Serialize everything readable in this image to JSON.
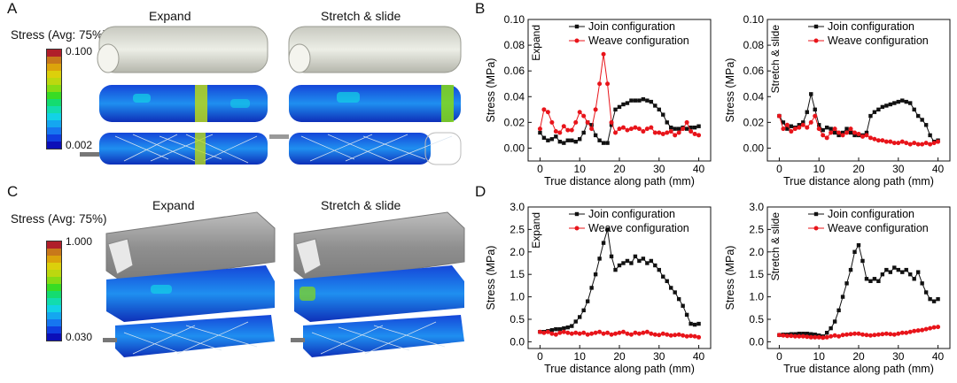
{
  "panels": {
    "A": {
      "letter": "A",
      "legend_title": "Stress (Avg: 75%)",
      "colorbar_max": "0.100",
      "colorbar_min": "0.002",
      "titles": [
        "Expand",
        "Stretch & slide"
      ]
    },
    "C": {
      "letter": "C",
      "legend_title": "Stress (Avg: 75%)",
      "colorbar_max": "1.000",
      "colorbar_min": "0.030",
      "titles": [
        "Expand",
        "Stretch & slide"
      ]
    },
    "B": {
      "letter": "B"
    },
    "D": {
      "letter": "D"
    }
  },
  "colors": {
    "colorbar": [
      "#0b0fb8",
      "#0f3ee0",
      "#1676f0",
      "#14a7f0",
      "#12d2e6",
      "#12dcae",
      "#14dc70",
      "#38dc24",
      "#86dc14",
      "#bcd80f",
      "#dcd00b",
      "#dca40b",
      "#c8781a",
      "#b01e2a"
    ],
    "join": "#111111",
    "weave": "#e8141a"
  },
  "chart_data": [
    {
      "id": "B-expand",
      "type": "line",
      "side_label": "Expand",
      "xlabel": "True distance along path (mm)",
      "ylabel": "Stress (MPa)",
      "xlim": [
        -3,
        43
      ],
      "ylim": [
        -0.01,
        0.1
      ],
      "xticks": [
        0,
        10,
        20,
        30,
        40
      ],
      "yticks": [
        0.0,
        0.02,
        0.04,
        0.06,
        0.08,
        0.1
      ],
      "ytick_labels": [
        "0.00",
        "0.02",
        "0.04",
        "0.06",
        "0.08",
        "0.10"
      ],
      "legend": "top-right",
      "series": [
        {
          "name": "Join configuration",
          "color": "#111111",
          "marker": "square",
          "x": [
            0,
            1,
            2,
            3,
            4,
            5,
            6,
            7,
            8,
            9,
            10,
            11,
            12,
            13,
            14,
            15,
            16,
            17,
            18,
            19,
            20,
            21,
            22,
            23,
            24,
            25,
            26,
            27,
            28,
            29,
            30,
            31,
            32,
            33,
            34,
            35,
            36,
            37,
            38,
            39,
            40
          ],
          "y": [
            0.012,
            0.008,
            0.006,
            0.007,
            0.009,
            0.005,
            0.004,
            0.006,
            0.006,
            0.005,
            0.007,
            0.012,
            0.02,
            0.018,
            0.01,
            0.006,
            0.004,
            0.004,
            0.018,
            0.03,
            0.032,
            0.034,
            0.035,
            0.037,
            0.037,
            0.037,
            0.038,
            0.037,
            0.036,
            0.033,
            0.03,
            0.026,
            0.02,
            0.016,
            0.015,
            0.015,
            0.016,
            0.015,
            0.016,
            0.016,
            0.017
          ]
        },
        {
          "name": "Weave configuration",
          "color": "#e8141a",
          "marker": "circle",
          "x": [
            0,
            1,
            2,
            3,
            4,
            5,
            6,
            7,
            8,
            9,
            10,
            11,
            12,
            13,
            14,
            15,
            16,
            17,
            18,
            19,
            20,
            21,
            22,
            23,
            24,
            25,
            26,
            27,
            28,
            29,
            30,
            31,
            32,
            33,
            34,
            35,
            36,
            37,
            38,
            39,
            40
          ],
          "y": [
            0.015,
            0.03,
            0.028,
            0.02,
            0.013,
            0.012,
            0.017,
            0.014,
            0.014,
            0.02,
            0.028,
            0.025,
            0.02,
            0.015,
            0.03,
            0.05,
            0.073,
            0.05,
            0.02,
            0.012,
            0.015,
            0.016,
            0.014,
            0.015,
            0.016,
            0.015,
            0.013,
            0.015,
            0.016,
            0.012,
            0.012,
            0.011,
            0.012,
            0.013,
            0.01,
            0.012,
            0.015,
            0.02,
            0.013,
            0.011,
            0.01
          ]
        }
      ]
    },
    {
      "id": "B-stretch",
      "type": "line",
      "side_label": "Stretch & slide",
      "xlabel": "True distance along path (mm)",
      "ylabel": "Stress (MPa)",
      "xlim": [
        -3,
        43
      ],
      "ylim": [
        -0.01,
        0.1
      ],
      "xticks": [
        0,
        10,
        20,
        30,
        40
      ],
      "yticks": [
        0.0,
        0.02,
        0.04,
        0.06,
        0.08,
        0.1
      ],
      "ytick_labels": [
        "0.00",
        "0.02",
        "0.04",
        "0.06",
        "0.08",
        "0.10"
      ],
      "legend": "top-right",
      "series": [
        {
          "name": "Join configuration",
          "color": "#111111",
          "marker": "square",
          "x": [
            0,
            1,
            2,
            3,
            4,
            5,
            6,
            7,
            8,
            9,
            10,
            11,
            12,
            13,
            14,
            15,
            16,
            17,
            18,
            19,
            20,
            21,
            22,
            23,
            24,
            25,
            26,
            27,
            28,
            29,
            30,
            31,
            32,
            33,
            34,
            35,
            36,
            37,
            38,
            39,
            40
          ],
          "y": [
            0.025,
            0.02,
            0.015,
            0.017,
            0.016,
            0.018,
            0.02,
            0.028,
            0.042,
            0.03,
            0.018,
            0.014,
            0.016,
            0.015,
            0.012,
            0.01,
            0.012,
            0.015,
            0.012,
            0.01,
            0.01,
            0.01,
            0.012,
            0.025,
            0.028,
            0.03,
            0.032,
            0.033,
            0.034,
            0.035,
            0.036,
            0.037,
            0.036,
            0.035,
            0.03,
            0.025,
            0.022,
            0.018,
            0.01,
            0.005,
            0.006
          ]
        },
        {
          "name": "Weave configuration",
          "color": "#e8141a",
          "marker": "circle",
          "x": [
            0,
            1,
            2,
            3,
            4,
            5,
            6,
            7,
            8,
            9,
            10,
            11,
            12,
            13,
            14,
            15,
            16,
            17,
            18,
            19,
            20,
            21,
            22,
            23,
            24,
            25,
            26,
            27,
            28,
            29,
            30,
            31,
            32,
            33,
            34,
            35,
            36,
            37,
            38,
            39,
            40
          ],
          "y": [
            0.025,
            0.015,
            0.018,
            0.013,
            0.015,
            0.016,
            0.018,
            0.016,
            0.02,
            0.025,
            0.015,
            0.01,
            0.008,
            0.012,
            0.015,
            0.012,
            0.01,
            0.012,
            0.015,
            0.012,
            0.011,
            0.009,
            0.01,
            0.008,
            0.007,
            0.006,
            0.006,
            0.005,
            0.005,
            0.004,
            0.004,
            0.005,
            0.004,
            0.003,
            0.004,
            0.003,
            0.003,
            0.004,
            0.003,
            0.004,
            0.005
          ]
        }
      ]
    },
    {
      "id": "D-expand",
      "type": "line",
      "side_label": "Expand",
      "xlabel": "True distance along path (mm)",
      "ylabel": "Stress (MPa)",
      "xlim": [
        -3,
        43
      ],
      "ylim": [
        -0.15,
        3.0
      ],
      "xticks": [
        0,
        10,
        20,
        30,
        40
      ],
      "yticks": [
        0.0,
        0.5,
        1.0,
        1.5,
        2.0,
        2.5,
        3.0
      ],
      "ytick_labels": [
        "0.0",
        "0.5",
        "1.0",
        "1.5",
        "2.0",
        "2.5",
        "3.0"
      ],
      "legend": "top-right",
      "series": [
        {
          "name": "Join configuration",
          "color": "#111111",
          "marker": "square",
          "x": [
            0,
            1,
            2,
            3,
            4,
            5,
            6,
            7,
            8,
            9,
            10,
            11,
            12,
            13,
            14,
            15,
            16,
            17,
            18,
            19,
            20,
            21,
            22,
            23,
            24,
            25,
            26,
            27,
            28,
            29,
            30,
            31,
            32,
            33,
            34,
            35,
            36,
            37,
            38,
            39,
            40
          ],
          "y": [
            0.22,
            0.22,
            0.24,
            0.26,
            0.28,
            0.28,
            0.3,
            0.32,
            0.35,
            0.45,
            0.55,
            0.7,
            0.9,
            1.2,
            1.5,
            1.85,
            2.2,
            2.5,
            1.9,
            1.6,
            1.7,
            1.75,
            1.8,
            1.75,
            1.9,
            1.8,
            1.85,
            1.75,
            1.8,
            1.7,
            1.6,
            1.45,
            1.35,
            1.2,
            1.1,
            0.95,
            0.8,
            0.6,
            0.4,
            0.38,
            0.4
          ]
        },
        {
          "name": "Weave configuration",
          "color": "#e8141a",
          "marker": "circle",
          "x": [
            0,
            1,
            2,
            3,
            4,
            5,
            6,
            7,
            8,
            9,
            10,
            11,
            12,
            13,
            14,
            15,
            16,
            17,
            18,
            19,
            20,
            21,
            22,
            23,
            24,
            25,
            26,
            27,
            28,
            29,
            30,
            31,
            32,
            33,
            34,
            35,
            36,
            37,
            38,
            39,
            40
          ],
          "y": [
            0.22,
            0.2,
            0.22,
            0.18,
            0.16,
            0.2,
            0.22,
            0.2,
            0.18,
            0.2,
            0.18,
            0.2,
            0.16,
            0.18,
            0.2,
            0.22,
            0.18,
            0.2,
            0.16,
            0.18,
            0.2,
            0.22,
            0.18,
            0.16,
            0.2,
            0.18,
            0.2,
            0.22,
            0.18,
            0.16,
            0.15,
            0.18,
            0.16,
            0.14,
            0.15,
            0.16,
            0.14,
            0.12,
            0.13,
            0.12,
            0.1
          ]
        }
      ]
    },
    {
      "id": "D-stretch",
      "type": "line",
      "side_label": "Stretch & slide",
      "xlabel": "True distance along path (mm)",
      "ylabel": "Stress (MPa)",
      "xlim": [
        -3,
        43
      ],
      "ylim": [
        -0.15,
        3.0
      ],
      "xticks": [
        0,
        10,
        20,
        30,
        40
      ],
      "yticks": [
        0.0,
        0.5,
        1.0,
        1.5,
        2.0,
        2.5,
        3.0
      ],
      "ytick_labels": [
        "0.0",
        "0.5",
        "1.0",
        "1.5",
        "2.0",
        "2.5",
        "3.0"
      ],
      "legend": "top-right",
      "series": [
        {
          "name": "Join configuration",
          "color": "#111111",
          "marker": "square",
          "x": [
            0,
            1,
            2,
            3,
            4,
            5,
            6,
            7,
            8,
            9,
            10,
            11,
            12,
            13,
            14,
            15,
            16,
            17,
            18,
            19,
            20,
            21,
            22,
            23,
            24,
            25,
            26,
            27,
            28,
            29,
            30,
            31,
            32,
            33,
            34,
            35,
            36,
            37,
            38,
            39,
            40
          ],
          "y": [
            0.15,
            0.16,
            0.16,
            0.17,
            0.17,
            0.18,
            0.18,
            0.18,
            0.17,
            0.16,
            0.14,
            0.12,
            0.2,
            0.3,
            0.45,
            0.7,
            1.0,
            1.3,
            1.6,
            2.0,
            2.15,
            1.8,
            1.4,
            1.35,
            1.4,
            1.35,
            1.5,
            1.6,
            1.55,
            1.65,
            1.6,
            1.55,
            1.6,
            1.5,
            1.4,
            1.55,
            1.3,
            1.1,
            0.95,
            0.9,
            0.95
          ]
        },
        {
          "name": "Weave configuration",
          "color": "#e8141a",
          "marker": "circle",
          "x": [
            0,
            1,
            2,
            3,
            4,
            5,
            6,
            7,
            8,
            9,
            10,
            11,
            12,
            13,
            14,
            15,
            16,
            17,
            18,
            19,
            20,
            21,
            22,
            23,
            24,
            25,
            26,
            27,
            28,
            29,
            30,
            31,
            32,
            33,
            34,
            35,
            36,
            37,
            38,
            39,
            40
          ],
          "y": [
            0.15,
            0.14,
            0.13,
            0.13,
            0.12,
            0.12,
            0.12,
            0.11,
            0.1,
            0.1,
            0.1,
            0.09,
            0.1,
            0.12,
            0.14,
            0.12,
            0.15,
            0.16,
            0.17,
            0.18,
            0.18,
            0.16,
            0.15,
            0.14,
            0.15,
            0.16,
            0.17,
            0.18,
            0.17,
            0.16,
            0.18,
            0.2,
            0.2,
            0.22,
            0.24,
            0.25,
            0.26,
            0.28,
            0.3,
            0.32,
            0.33
          ]
        }
      ]
    }
  ]
}
